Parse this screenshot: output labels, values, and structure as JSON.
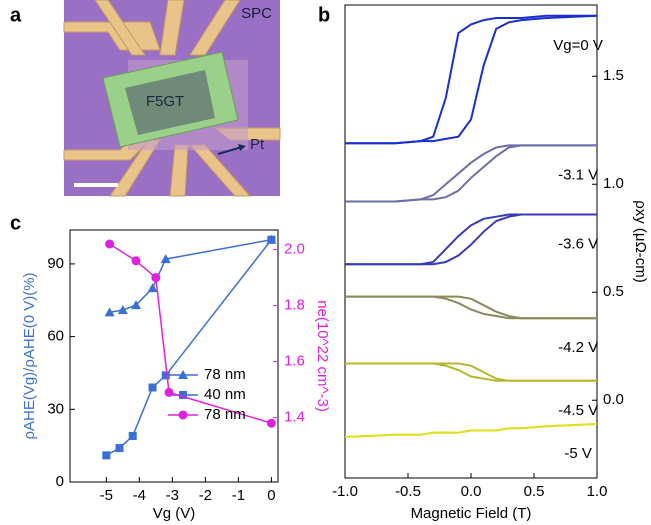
{
  "panel_labels": [
    "a",
    "b",
    "c"
  ],
  "micrograph": {
    "sample_label": "SPC",
    "flake_label": "F5GT",
    "electrode_label": "Pt"
  },
  "chart_data": [
    {
      "type": "loops",
      "xlabel": "Magnetic Field (T)",
      "ylabel": "ρxy (μΩ-cm)",
      "xlim": [
        -1,
        1
      ],
      "ylim": [
        -0.36,
        1.83
      ],
      "xticks": [
        {
          "value": -1,
          "label": "-1.0"
        },
        {
          "value": -0.5,
          "label": "-0.5"
        },
        {
          "value": 0,
          "label": "0.0"
        },
        {
          "value": 0.5,
          "label": "0.5"
        },
        {
          "value": 1,
          "label": "1.0"
        }
      ],
      "yticks": [
        {
          "value": 0,
          "label": "0.0"
        },
        0.5,
        {
          "value": 1,
          "label": "1.0"
        },
        1.5
      ],
      "x": [
        -1,
        -0.6,
        -0.4,
        -0.3,
        -0.2,
        -0.1,
        0,
        0.1,
        0.2,
        0.3,
        0.4,
        0.6,
        1
      ],
      "series": [
        {
          "name": "Vg=0 V",
          "color": "#1a2ecf",
          "sweep_down": [
            1.19,
            1.19,
            1.2,
            1.22,
            1.4,
            1.7,
            1.74,
            1.76,
            1.77,
            1.77,
            1.77,
            1.78,
            1.78
          ],
          "sweep_up": [
            1.19,
            1.19,
            1.2,
            1.2,
            1.21,
            1.22,
            1.3,
            1.55,
            1.72,
            1.75,
            1.76,
            1.77,
            1.78
          ]
        },
        {
          "name": "-3.1 V",
          "color": "#6e6ea8",
          "sweep_down": [
            0.92,
            0.92,
            0.93,
            0.95,
            1.0,
            1.05,
            1.1,
            1.14,
            1.17,
            1.18,
            1.18,
            1.18,
            1.18
          ],
          "sweep_up": [
            0.92,
            0.92,
            0.93,
            0.93,
            0.94,
            0.97,
            1.03,
            1.08,
            1.13,
            1.17,
            1.18,
            1.18,
            1.18
          ]
        },
        {
          "name": "-3.6 V",
          "color": "#3a3ab8",
          "sweep_down": [
            0.63,
            0.63,
            0.63,
            0.64,
            0.7,
            0.76,
            0.81,
            0.84,
            0.85,
            0.86,
            0.86,
            0.86,
            0.86
          ],
          "sweep_up": [
            0.63,
            0.63,
            0.63,
            0.63,
            0.64,
            0.67,
            0.72,
            0.78,
            0.83,
            0.85,
            0.86,
            0.86,
            0.86
          ]
        },
        {
          "name": "-4.2 V",
          "color": "#8a8a5a",
          "sweep_down": [
            0.48,
            0.48,
            0.48,
            0.48,
            0.47,
            0.45,
            0.42,
            0.4,
            0.39,
            0.38,
            0.38,
            0.38,
            0.38
          ],
          "sweep_up": [
            0.48,
            0.48,
            0.48,
            0.48,
            0.48,
            0.48,
            0.47,
            0.44,
            0.41,
            0.39,
            0.38,
            0.38,
            0.38
          ]
        },
        {
          "name": "-4.5 V",
          "color": "#b8b830",
          "sweep_down": [
            0.17,
            0.17,
            0.17,
            0.17,
            0.16,
            0.14,
            0.11,
            0.1,
            0.09,
            0.09,
            0.09,
            0.09,
            0.09
          ],
          "sweep_up": [
            0.17,
            0.17,
            0.17,
            0.17,
            0.17,
            0.17,
            0.16,
            0.13,
            0.1,
            0.09,
            0.09,
            0.09,
            0.09
          ]
        },
        {
          "name": "-5 V",
          "color": "#e0e020",
          "sweep_down": [
            -0.17,
            -0.16,
            -0.16,
            -0.15,
            -0.15,
            -0.15,
            -0.14,
            -0.14,
            -0.14,
            -0.13,
            -0.13,
            -0.12,
            -0.11
          ],
          "sweep_up": [
            -0.17,
            -0.16,
            -0.16,
            -0.15,
            -0.15,
            -0.15,
            -0.14,
            -0.14,
            -0.14,
            -0.13,
            -0.13,
            -0.12,
            -0.11
          ]
        }
      ]
    },
    {
      "type": "dual",
      "xlabel": "Vg (V)",
      "ylabel": "ρAHE(Vg)/ρAHE(0 V)(%)",
      "y2label": "ne(10^22 cm^-3)",
      "xlim": [
        -6.1,
        0.2
      ],
      "ylim": [
        0,
        104
      ],
      "y2lim": [
        1.17,
        2.07
      ],
      "xticks": [
        -5,
        -4,
        -3,
        -2,
        -1,
        0
      ],
      "yticks": [
        0,
        30,
        60,
        90
      ],
      "y2ticks": [
        1.4,
        1.6,
        1.8,
        {
          "value": 2,
          "label": "2.0"
        }
      ],
      "series": [
        {
          "name": "78 nm",
          "color": "#3a6fd6",
          "marker": "triangle",
          "axis": "y",
          "x": [
            -4.9,
            -4.5,
            -4.1,
            -3.6,
            -3.2,
            0
          ],
          "values": [
            70,
            71,
            73,
            80,
            92,
            100
          ]
        },
        {
          "name": "40 nm",
          "color": "#3a6fd6",
          "marker": "square",
          "axis": "y",
          "x": [
            -5,
            -4.6,
            -4.2,
            -3.6,
            -3.2,
            0
          ],
          "values": [
            11,
            14,
            19,
            39,
            44,
            100
          ]
        },
        {
          "name": "78 nm",
          "color": "#e020e0",
          "marker": "circle",
          "axis": "y2",
          "x": [
            -4.9,
            -4.1,
            -3.5,
            -3.1,
            0
          ],
          "values": [
            2.02,
            1.96,
            1.9,
            1.49,
            1.38
          ]
        }
      ]
    }
  ]
}
